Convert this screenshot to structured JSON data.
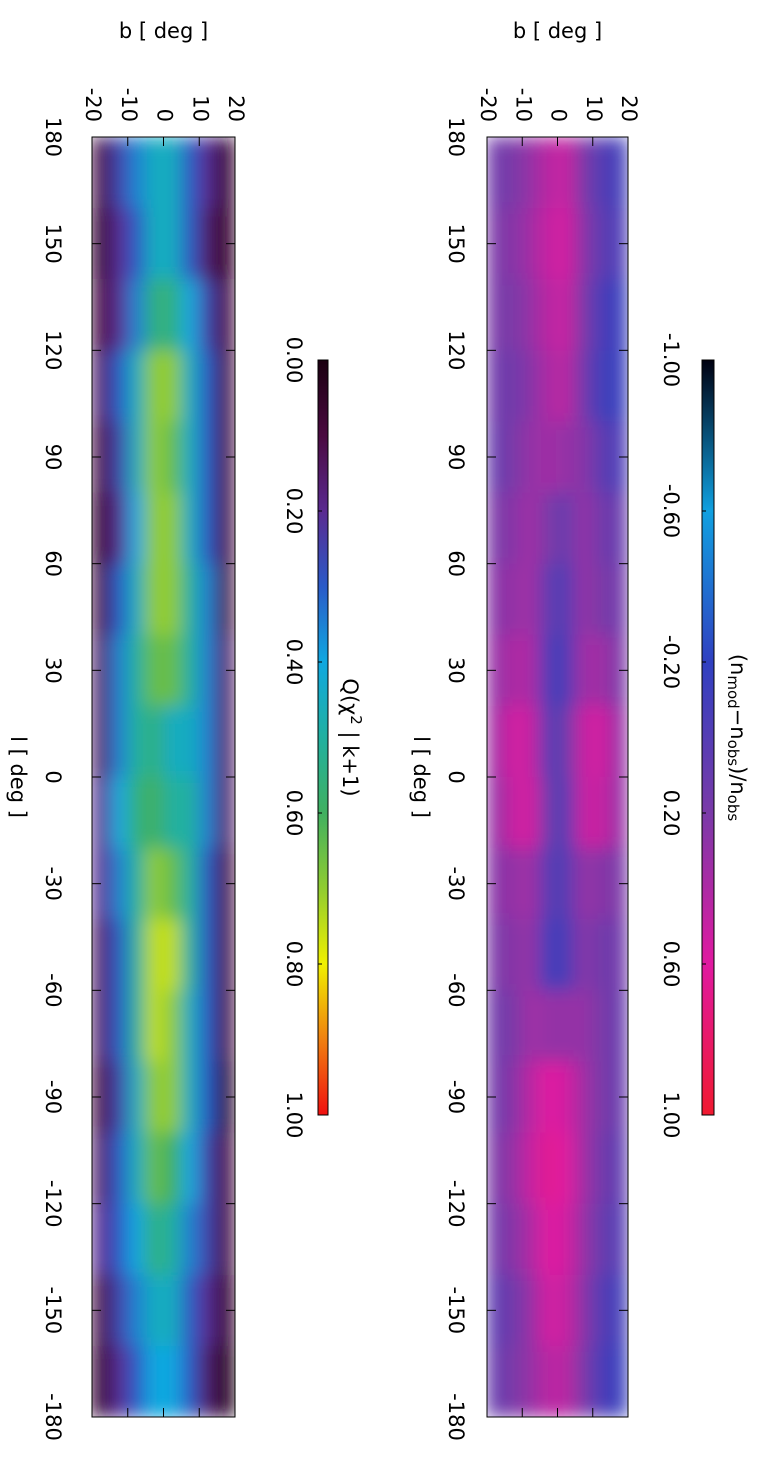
{
  "chart_data": [
    {
      "type": "heatmap",
      "xlabel": "l [ deg ]",
      "ylabel": "b [ deg ]",
      "xlim": [
        180,
        -180
      ],
      "xticks": [
        180,
        150,
        120,
        90,
        60,
        30,
        0,
        -30,
        -60,
        -90,
        -120,
        -150,
        -180
      ],
      "ylim": [
        -20,
        20
      ],
      "yticks": [
        -20,
        -10,
        0,
        10,
        20
      ],
      "xbins": [
        180,
        160,
        140,
        120,
        100,
        80,
        60,
        40,
        20,
        0,
        -20,
        -40,
        -60,
        -80,
        -100,
        -120,
        -140,
        -160,
        -180
      ],
      "ybins": [
        -20,
        -15,
        -10,
        -5,
        0,
        5,
        10,
        15,
        20
      ],
      "z": [
        [
          0.15,
          0.2,
          0.2,
          0.15,
          0.1,
          0.2,
          0.25,
          0.3,
          0.35,
          0.3,
          0.25,
          0.2,
          0.15,
          0.15,
          0.2,
          0.15,
          0.05,
          0.1
        ],
        [
          0.2,
          0.25,
          0.2,
          0.15,
          0.2,
          0.25,
          0.3,
          0.4,
          0.55,
          0.5,
          0.3,
          0.25,
          0.2,
          0.25,
          0.3,
          0.25,
          0.15,
          0.2
        ],
        [
          0.3,
          0.35,
          0.3,
          0.25,
          0.3,
          0.35,
          0.35,
          0.4,
          0.5,
          0.55,
          0.35,
          0.3,
          0.35,
          0.45,
          0.5,
          0.4,
          0.3,
          0.3
        ],
        [
          0.45,
          0.5,
          0.45,
          0.4,
          0.35,
          0.2,
          0.05,
          -0.05,
          0.0,
          0.1,
          0.0,
          -0.1,
          0.3,
          0.6,
          0.65,
          0.6,
          0.55,
          0.45
        ],
        [
          0.5,
          0.55,
          0.5,
          0.45,
          0.3,
          0.1,
          0.0,
          -0.05,
          0.1,
          0.0,
          0.0,
          -0.05,
          0.3,
          0.55,
          0.6,
          0.55,
          0.5,
          0.45
        ],
        [
          0.2,
          0.25,
          0.2,
          0.15,
          0.25,
          0.3,
          0.3,
          0.35,
          0.5,
          0.5,
          0.3,
          0.25,
          0.3,
          0.35,
          0.35,
          0.3,
          0.25,
          0.2
        ],
        [
          0.0,
          0.05,
          -0.05,
          -0.1,
          0.05,
          0.15,
          0.2,
          0.35,
          0.55,
          0.5,
          0.25,
          0.15,
          0.2,
          0.2,
          0.15,
          0.1,
          0.0,
          -0.05
        ],
        [
          -0.1,
          -0.05,
          -0.15,
          -0.15,
          -0.05,
          0.1,
          0.15,
          0.2,
          0.3,
          0.3,
          0.2,
          0.15,
          0.1,
          0.1,
          0.05,
          0.0,
          -0.1,
          -0.15
        ]
      ],
      "colorbar": {
        "title_parts": [
          {
            "text": "(n",
            "pos": "normal"
          },
          {
            "text": "mod",
            "pos": "sub"
          },
          {
            "text": "−n",
            "pos": "normal"
          },
          {
            "text": "obs",
            "pos": "sub"
          },
          {
            "text": ")/n",
            "pos": "normal"
          },
          {
            "text": "obs",
            "pos": "sub"
          }
        ],
        "zlim": [
          -1,
          1
        ],
        "ticks": [
          {
            "value": -1,
            "label": "-1.00"
          },
          {
            "value": -0.6,
            "label": "-0.60"
          },
          {
            "value": -0.2,
            "label": "-0.20"
          },
          {
            "value": 0.2,
            "label": "0.20"
          },
          {
            "value": 0.6,
            "label": "0.60"
          },
          {
            "value": 1,
            "label": "1.00"
          }
        ],
        "colors": [
          "#000010",
          "#10a0e0",
          "#3040c0",
          "#7a3aa8",
          "#e01aa0",
          "#f01a30"
        ]
      }
    },
    {
      "type": "heatmap",
      "xlabel": "l [ deg ]",
      "ylabel": "b [ deg ]",
      "xlim": [
        180,
        -180
      ],
      "xticks": [
        180,
        150,
        120,
        90,
        60,
        30,
        0,
        -30,
        -60,
        -90,
        -120,
        -150,
        -180
      ],
      "ylim": [
        -20,
        20
      ],
      "yticks": [
        -20,
        -10,
        0,
        10,
        20
      ],
      "xbins": [
        180,
        160,
        140,
        120,
        100,
        80,
        60,
        40,
        20,
        0,
        -20,
        -40,
        -60,
        -80,
        -100,
        -120,
        -140,
        -160,
        -180
      ],
      "ybins": [
        -20,
        -15,
        -10,
        -5,
        0,
        5,
        10,
        15,
        20
      ],
      "z": [
        [
          0.1,
          0.05,
          0.1,
          0.15,
          0.1,
          0.05,
          0.1,
          0.15,
          0.15,
          0.2,
          0.2,
          0.15,
          0.15,
          0.1,
          0.15,
          0.2,
          0.1,
          0.05
        ],
        [
          0.25,
          0.2,
          0.2,
          0.3,
          0.25,
          0.2,
          0.3,
          0.35,
          0.35,
          0.4,
          0.35,
          0.3,
          0.3,
          0.25,
          0.3,
          0.3,
          0.25,
          0.2
        ],
        [
          0.35,
          0.3,
          0.35,
          0.45,
          0.45,
          0.4,
          0.45,
          0.5,
          0.5,
          0.55,
          0.5,
          0.5,
          0.5,
          0.45,
          0.45,
          0.4,
          0.35,
          0.3
        ],
        [
          0.45,
          0.45,
          0.55,
          0.7,
          0.7,
          0.7,
          0.7,
          0.65,
          0.55,
          0.6,
          0.7,
          0.75,
          0.75,
          0.7,
          0.65,
          0.55,
          0.45,
          0.4
        ],
        [
          0.45,
          0.45,
          0.55,
          0.7,
          0.65,
          0.7,
          0.7,
          0.65,
          0.45,
          0.5,
          0.65,
          0.75,
          0.7,
          0.7,
          0.6,
          0.5,
          0.45,
          0.4
        ],
        [
          0.3,
          0.3,
          0.4,
          0.45,
          0.45,
          0.45,
          0.5,
          0.5,
          0.45,
          0.5,
          0.5,
          0.5,
          0.45,
          0.45,
          0.4,
          0.35,
          0.3,
          0.3
        ],
        [
          0.2,
          0.15,
          0.25,
          0.3,
          0.3,
          0.3,
          0.35,
          0.35,
          0.35,
          0.35,
          0.3,
          0.3,
          0.3,
          0.3,
          0.25,
          0.25,
          0.2,
          0.15
        ],
        [
          0.05,
          0.05,
          0.1,
          0.1,
          0.1,
          0.1,
          0.1,
          0.15,
          0.15,
          0.15,
          0.1,
          0.1,
          0.1,
          0.05,
          0.1,
          0.1,
          0.05,
          0.0
        ]
      ],
      "colorbar": {
        "title_parts": [
          {
            "text": "Q(χ",
            "pos": "normal"
          },
          {
            "text": "2",
            "pos": "super"
          },
          {
            "text": " | k+1)",
            "pos": "normal"
          }
        ],
        "zlim": [
          0,
          1
        ],
        "ticks": [
          {
            "value": 0,
            "label": "0.00"
          },
          {
            "value": 0.2,
            "label": "0.20"
          },
          {
            "value": 0.4,
            "label": "0.40"
          },
          {
            "value": 0.6,
            "label": "0.60"
          },
          {
            "value": 0.8,
            "label": "0.80"
          },
          {
            "value": 1,
            "label": "1.00"
          }
        ],
        "colors": [
          "#1a0010",
          "#4a0a40",
          "#5a2a90",
          "#2a5ac8",
          "#10a8e0",
          "#20b0a0",
          "#40b060",
          "#90cc30",
          "#f0f000",
          "#f08010",
          "#f01010"
        ]
      }
    }
  ]
}
